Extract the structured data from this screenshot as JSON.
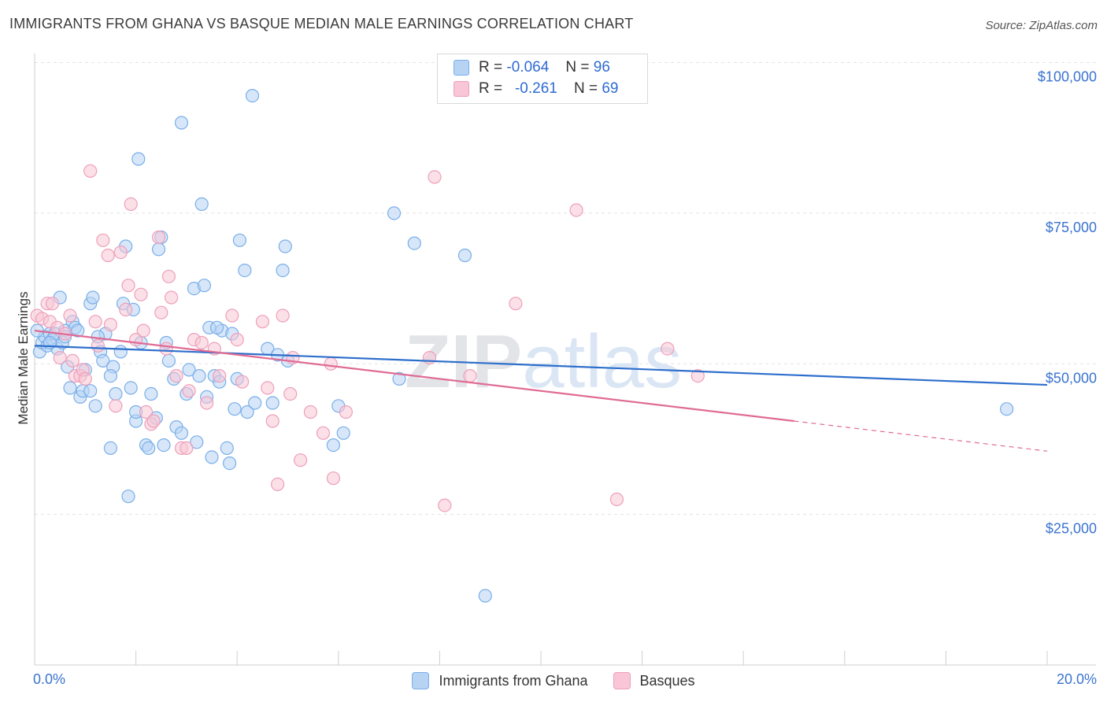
{
  "title": "IMMIGRANTS FROM GHANA VS BASQUE MEDIAN MALE EARNINGS CORRELATION CHART",
  "source": "Source: ZipAtlas.com",
  "watermark": "ZIPatlas",
  "chart_data": {
    "type": "scatter",
    "title": "IMMIGRANTS FROM GHANA VS BASQUE MEDIAN MALE EARNINGS CORRELATION CHART",
    "xlabel": "",
    "ylabel": "Median Male Earnings",
    "xlim": [
      0,
      20
    ],
    "ylim": [
      0,
      105000
    ],
    "x_tick_labels": [
      {
        "value": 0,
        "label": "0.0%"
      },
      {
        "value": 20,
        "label": "20.0%"
      }
    ],
    "y_tick_labels": [
      {
        "value": 25000,
        "label": "$25,000"
      },
      {
        "value": 50000,
        "label": "$50,000"
      },
      {
        "value": 75000,
        "label": "$75,000"
      },
      {
        "value": 100000,
        "label": "$100,000"
      }
    ],
    "grid": true,
    "legend_position": "top-center",
    "stats": [
      {
        "r_label": "R =",
        "r_value": "-0.064",
        "n_label": "N =",
        "n_value": "96"
      },
      {
        "r_label": "R =",
        "r_value": "-0.261",
        "n_label": "N =",
        "n_value": "69"
      }
    ],
    "series": [
      {
        "name": "Immigrants from Ghana",
        "color": "#7aaee8",
        "fill": "#b7d3f4",
        "line_color": "#2e6fcc",
        "trend": {
          "x0": 0,
          "y0": 53000,
          "x1": 20,
          "y1": 46500
        },
        "points": [
          [
            0.1,
            52000
          ],
          [
            0.15,
            53500
          ],
          [
            0.2,
            54500
          ],
          [
            0.25,
            53000
          ],
          [
            0.3,
            55000
          ],
          [
            0.35,
            54000
          ],
          [
            0.4,
            55000
          ],
          [
            0.45,
            52500
          ],
          [
            0.5,
            61000
          ],
          [
            0.55,
            53500
          ],
          [
            0.6,
            55500
          ],
          [
            0.65,
            49500
          ],
          [
            0.7,
            46000
          ],
          [
            0.75,
            57000
          ],
          [
            0.8,
            56000
          ],
          [
            0.85,
            55500
          ],
          [
            0.9,
            44500
          ],
          [
            0.95,
            45500
          ],
          [
            1.0,
            49000
          ],
          [
            1.1,
            60000
          ],
          [
            1.15,
            61000
          ],
          [
            1.2,
            43000
          ],
          [
            1.3,
            52000
          ],
          [
            1.35,
            50500
          ],
          [
            1.4,
            55000
          ],
          [
            1.5,
            36000
          ],
          [
            1.55,
            49500
          ],
          [
            1.6,
            45000
          ],
          [
            1.7,
            52000
          ],
          [
            1.75,
            60000
          ],
          [
            1.8,
            69500
          ],
          [
            1.85,
            28000
          ],
          [
            1.9,
            46000
          ],
          [
            1.95,
            59000
          ],
          [
            2.0,
            40500
          ],
          [
            2.05,
            84000
          ],
          [
            2.1,
            53500
          ],
          [
            2.2,
            36500
          ],
          [
            2.25,
            36000
          ],
          [
            2.3,
            45000
          ],
          [
            2.45,
            69000
          ],
          [
            2.5,
            71000
          ],
          [
            2.55,
            36500
          ],
          [
            2.6,
            53500
          ],
          [
            2.65,
            50500
          ],
          [
            2.75,
            47500
          ],
          [
            2.8,
            39500
          ],
          [
            2.9,
            90000
          ],
          [
            3.0,
            45000
          ],
          [
            3.05,
            49000
          ],
          [
            3.15,
            62500
          ],
          [
            3.25,
            48000
          ],
          [
            3.3,
            76500
          ],
          [
            3.35,
            63000
          ],
          [
            3.4,
            44500
          ],
          [
            3.45,
            56000
          ],
          [
            3.5,
            34500
          ],
          [
            3.55,
            48000
          ],
          [
            3.65,
            47000
          ],
          [
            3.7,
            55500
          ],
          [
            3.8,
            36000
          ],
          [
            3.85,
            33500
          ],
          [
            3.9,
            55000
          ],
          [
            3.95,
            42500
          ],
          [
            4.05,
            70500
          ],
          [
            4.15,
            65500
          ],
          [
            4.2,
            42000
          ],
          [
            4.3,
            94500
          ],
          [
            4.35,
            43500
          ],
          [
            4.6,
            52500
          ],
          [
            4.7,
            43500
          ],
          [
            4.8,
            51500
          ],
          [
            4.9,
            65500
          ],
          [
            4.95,
            69500
          ],
          [
            5.0,
            50500
          ],
          [
            5.9,
            36500
          ],
          [
            6.0,
            43000
          ],
          [
            6.1,
            38500
          ],
          [
            7.1,
            75000
          ],
          [
            7.2,
            47500
          ],
          [
            7.5,
            70000
          ],
          [
            8.5,
            68000
          ],
          [
            8.9,
            11500
          ],
          [
            19.2,
            42500
          ],
          [
            0.05,
            55500
          ],
          [
            0.3,
            53500
          ],
          [
            1.25,
            54500
          ],
          [
            1.5,
            48000
          ],
          [
            2.0,
            42000
          ],
          [
            2.9,
            38500
          ],
          [
            3.6,
            56000
          ],
          [
            4.0,
            47500
          ],
          [
            0.6,
            54500
          ],
          [
            1.1,
            45500
          ],
          [
            2.4,
            41000
          ],
          [
            3.2,
            37000
          ]
        ]
      },
      {
        "name": "Basques",
        "color": "#ee9fba",
        "fill": "#f8c6d6",
        "line_color": "#e06b94",
        "trend": {
          "x0": 0,
          "y0": 55500,
          "x1": 15,
          "y1": 40500
        },
        "trend_dashed": {
          "x0": 15,
          "y0": 40500,
          "x1": 20,
          "y1": 35500
        },
        "points": [
          [
            0.05,
            58000
          ],
          [
            0.15,
            57500
          ],
          [
            0.25,
            60000
          ],
          [
            0.3,
            57000
          ],
          [
            0.35,
            60000
          ],
          [
            0.45,
            56000
          ],
          [
            0.5,
            51000
          ],
          [
            0.6,
            55000
          ],
          [
            0.7,
            58000
          ],
          [
            0.75,
            50500
          ],
          [
            0.8,
            48000
          ],
          [
            0.9,
            48000
          ],
          [
            0.95,
            49000
          ],
          [
            1.0,
            47500
          ],
          [
            1.1,
            82000
          ],
          [
            1.2,
            57000
          ],
          [
            1.25,
            53000
          ],
          [
            1.35,
            70500
          ],
          [
            1.45,
            68000
          ],
          [
            1.5,
            56500
          ],
          [
            1.6,
            43000
          ],
          [
            1.7,
            68500
          ],
          [
            1.8,
            59000
          ],
          [
            1.85,
            63000
          ],
          [
            1.9,
            76500
          ],
          [
            2.0,
            54000
          ],
          [
            2.1,
            61500
          ],
          [
            2.15,
            55500
          ],
          [
            2.2,
            42000
          ],
          [
            2.3,
            40000
          ],
          [
            2.35,
            40500
          ],
          [
            2.45,
            71000
          ],
          [
            2.5,
            58500
          ],
          [
            2.6,
            52500
          ],
          [
            2.65,
            64500
          ],
          [
            2.7,
            61000
          ],
          [
            2.8,
            48000
          ],
          [
            2.9,
            36000
          ],
          [
            3.0,
            36000
          ],
          [
            3.05,
            45500
          ],
          [
            3.15,
            54000
          ],
          [
            3.3,
            53500
          ],
          [
            3.4,
            43500
          ],
          [
            3.55,
            52500
          ],
          [
            3.65,
            48000
          ],
          [
            3.9,
            58000
          ],
          [
            4.0,
            54000
          ],
          [
            4.1,
            47000
          ],
          [
            4.5,
            57000
          ],
          [
            4.6,
            46000
          ],
          [
            4.7,
            40500
          ],
          [
            4.8,
            30000
          ],
          [
            4.9,
            58000
          ],
          [
            5.05,
            45000
          ],
          [
            5.1,
            51000
          ],
          [
            5.25,
            34000
          ],
          [
            5.45,
            42000
          ],
          [
            5.7,
            38500
          ],
          [
            5.85,
            50000
          ],
          [
            5.9,
            31000
          ],
          [
            6.15,
            42000
          ],
          [
            7.8,
            51000
          ],
          [
            7.9,
            81000
          ],
          [
            8.1,
            26500
          ],
          [
            8.6,
            48000
          ],
          [
            9.5,
            60000
          ],
          [
            10.7,
            75500
          ],
          [
            11.5,
            27500
          ],
          [
            12.5,
            52500
          ],
          [
            13.1,
            48000
          ]
        ]
      }
    ]
  }
}
